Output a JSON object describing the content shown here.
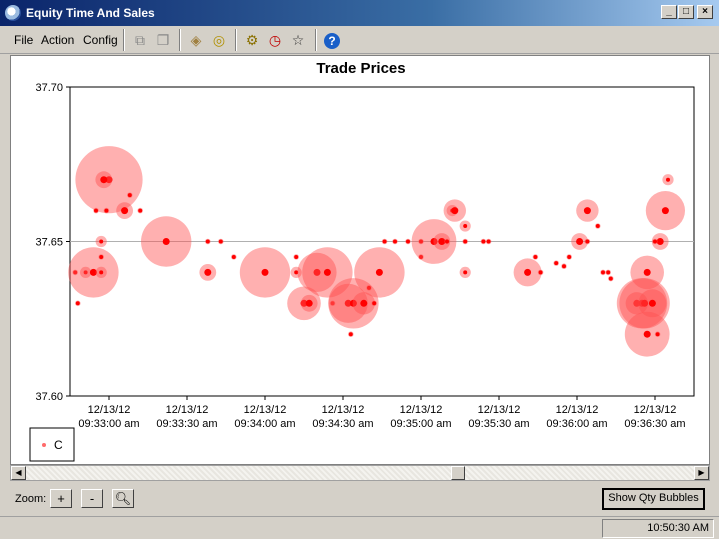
{
  "window": {
    "title": "Equity Time And Sales"
  },
  "menu": {
    "file": "File",
    "action": "Action",
    "config": "Config"
  },
  "toolbar_icons": [
    "copy-icon",
    "window-icon",
    "tag-icon",
    "coin-icon",
    "gear-icon",
    "clock-icon",
    "star-icon",
    "help-icon"
  ],
  "chart_data": {
    "type": "scatter",
    "title": "Trade Prices",
    "y_axis": {
      "min": 37.6,
      "max": 37.7,
      "ticks": [
        "37.70",
        "37.65",
        "37.60"
      ]
    },
    "x_axis": {
      "min": "09:32:45",
      "max": "09:36:45",
      "ticks": [
        {
          "date": "12/13/12",
          "time": "09:33:00 am"
        },
        {
          "date": "12/13/12",
          "time": "09:33:30 am"
        },
        {
          "date": "12/13/12",
          "time": "09:34:00 am"
        },
        {
          "date": "12/13/12",
          "time": "09:34:30 am"
        },
        {
          "date": "12/13/12",
          "time": "09:35:00 am"
        },
        {
          "date": "12/13/12",
          "time": "09:35:30 am"
        },
        {
          "date": "12/13/12",
          "time": "09:36:00 am"
        },
        {
          "date": "12/13/12",
          "time": "09:36:30 am"
        }
      ]
    },
    "gridline": 37.65,
    "legend": {
      "placement": "bottom-left",
      "entries": [
        "C"
      ]
    },
    "color": "#ff0000",
    "series": [
      {
        "name": "C",
        "points": [
          {
            "t": "09:32:47",
            "p": 37.64,
            "q": 1
          },
          {
            "t": "09:32:48",
            "p": 37.63,
            "q": 1
          },
          {
            "t": "09:32:51",
            "p": 37.64,
            "q": 2
          },
          {
            "t": "09:32:54",
            "p": 37.64,
            "q": 9
          },
          {
            "t": "09:32:57",
            "p": 37.64,
            "q": 2
          },
          {
            "t": "09:32:57",
            "p": 37.65,
            "q": 2
          },
          {
            "t": "09:32:57",
            "p": 37.645,
            "q": 1
          },
          {
            "t": "09:33:00",
            "p": 37.67,
            "q": 12
          },
          {
            "t": "09:32:58",
            "p": 37.67,
            "q": 3
          },
          {
            "t": "09:32:55",
            "p": 37.66,
            "q": 1
          },
          {
            "t": "09:32:59",
            "p": 37.66,
            "q": 1
          },
          {
            "t": "09:33:06",
            "p": 37.66,
            "q": 3
          },
          {
            "t": "09:33:08",
            "p": 37.665,
            "q": 1
          },
          {
            "t": "09:33:12",
            "p": 37.66,
            "q": 1
          },
          {
            "t": "09:33:22",
            "p": 37.65,
            "q": 9
          },
          {
            "t": "09:33:38",
            "p": 37.65,
            "q": 1
          },
          {
            "t": "09:33:38",
            "p": 37.64,
            "q": 3
          },
          {
            "t": "09:33:43",
            "p": 37.65,
            "q": 1
          },
          {
            "t": "09:33:48",
            "p": 37.645,
            "q": 1
          },
          {
            "t": "09:34:00",
            "p": 37.64,
            "q": 9
          },
          {
            "t": "09:34:12",
            "p": 37.645,
            "q": 1
          },
          {
            "t": "09:34:12",
            "p": 37.64,
            "q": 2
          },
          {
            "t": "09:34:15",
            "p": 37.63,
            "q": 6
          },
          {
            "t": "09:34:17",
            "p": 37.63,
            "q": 3
          },
          {
            "t": "09:34:20",
            "p": 37.64,
            "q": 7
          },
          {
            "t": "09:34:24",
            "p": 37.64,
            "q": 9
          },
          {
            "t": "09:34:26",
            "p": 37.63,
            "q": 1
          },
          {
            "t": "09:34:32",
            "p": 37.63,
            "q": 7
          },
          {
            "t": "09:34:34",
            "p": 37.63,
            "q": 9
          },
          {
            "t": "09:34:33",
            "p": 37.62,
            "q": 1
          },
          {
            "t": "09:34:38",
            "p": 37.63,
            "q": 4
          },
          {
            "t": "09:34:40",
            "p": 37.635,
            "q": 1
          },
          {
            "t": "09:34:42",
            "p": 37.63,
            "q": 1
          },
          {
            "t": "09:34:44",
            "p": 37.64,
            "q": 9
          },
          {
            "t": "09:34:46",
            "p": 37.65,
            "q": 1
          },
          {
            "t": "09:34:50",
            "p": 37.65,
            "q": 1
          },
          {
            "t": "09:34:55",
            "p": 37.65,
            "q": 1
          },
          {
            "t": "09:35:00",
            "p": 37.65,
            "q": 1
          },
          {
            "t": "09:35:00",
            "p": 37.645,
            "q": 1
          },
          {
            "t": "09:35:05",
            "p": 37.65,
            "q": 8
          },
          {
            "t": "09:35:08",
            "p": 37.65,
            "q": 3
          },
          {
            "t": "09:35:10",
            "p": 37.65,
            "q": 1
          },
          {
            "t": "09:35:12",
            "p": 37.66,
            "q": 2
          },
          {
            "t": "09:35:13",
            "p": 37.66,
            "q": 4
          },
          {
            "t": "09:35:17",
            "p": 37.655,
            "q": 2
          },
          {
            "t": "09:35:17",
            "p": 37.64,
            "q": 2
          },
          {
            "t": "09:35:17",
            "p": 37.65,
            "q": 1
          },
          {
            "t": "09:35:24",
            "p": 37.65,
            "q": 1
          },
          {
            "t": "09:35:26",
            "p": 37.65,
            "q": 1
          },
          {
            "t": "09:35:41",
            "p": 37.64,
            "q": 5
          },
          {
            "t": "09:35:44",
            "p": 37.645,
            "q": 1
          },
          {
            "t": "09:35:46",
            "p": 37.64,
            "q": 1
          },
          {
            "t": "09:35:52",
            "p": 37.643,
            "q": 1
          },
          {
            "t": "09:35:55",
            "p": 37.642,
            "q": 1
          },
          {
            "t": "09:35:57",
            "p": 37.645,
            "q": 1
          },
          {
            "t": "09:36:01",
            "p": 37.65,
            "q": 3
          },
          {
            "t": "09:36:04",
            "p": 37.66,
            "q": 4
          },
          {
            "t": "09:36:04",
            "p": 37.65,
            "q": 1
          },
          {
            "t": "09:36:08",
            "p": 37.655,
            "q": 1
          },
          {
            "t": "09:36:10",
            "p": 37.64,
            "q": 1
          },
          {
            "t": "09:36:12",
            "p": 37.64,
            "q": 1
          },
          {
            "t": "09:36:13",
            "p": 37.638,
            "q": 1
          },
          {
            "t": "09:36:23",
            "p": 37.63,
            "q": 4
          },
          {
            "t": "09:36:25",
            "p": 37.63,
            "q": 9
          },
          {
            "t": "09:36:26",
            "p": 37.63,
            "q": 9
          },
          {
            "t": "09:36:27",
            "p": 37.62,
            "q": 8
          },
          {
            "t": "09:36:27",
            "p": 37.64,
            "q": 6
          },
          {
            "t": "09:36:29",
            "p": 37.63,
            "q": 5
          },
          {
            "t": "09:36:32",
            "p": 37.65,
            "q": 3
          },
          {
            "t": "09:36:34",
            "p": 37.66,
            "q": 7
          },
          {
            "t": "09:36:35",
            "p": 37.67,
            "q": 2
          },
          {
            "t": "09:36:30",
            "p": 37.65,
            "q": 1
          },
          {
            "t": "09:36:31",
            "p": 37.62,
            "q": 1
          }
        ]
      }
    ]
  },
  "zoom": {
    "label": "Zoom:",
    "plus": "+",
    "minus": "-"
  },
  "show_qty_button": "Show Qty Bubbles",
  "status": {
    "time": "10:50:30 AM"
  }
}
